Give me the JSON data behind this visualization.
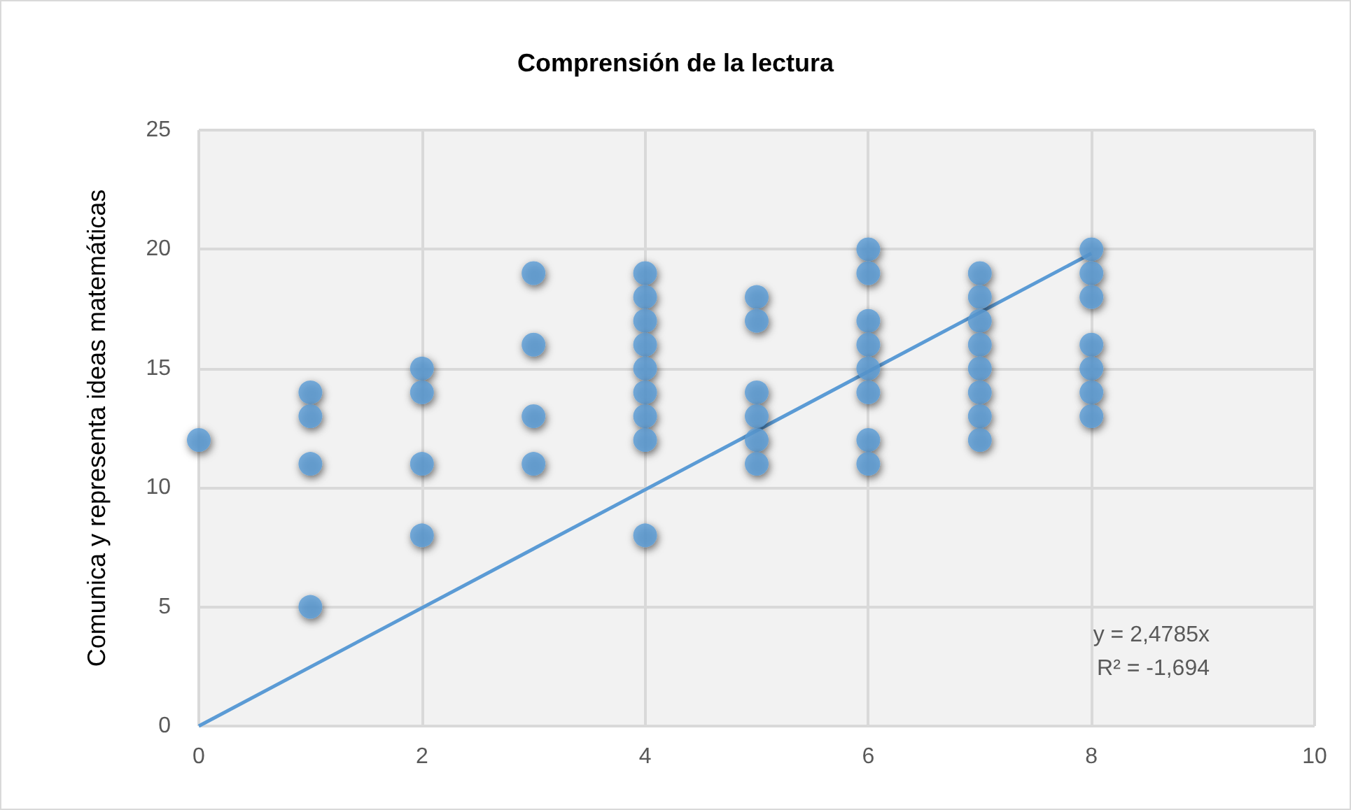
{
  "chart_data": {
    "type": "scatter",
    "title": "Comprensión de la lectura",
    "ylabel": "Comunica y representa ideas matemáticas",
    "xlim": [
      0,
      10
    ],
    "xticks": [
      0,
      2,
      4,
      6,
      8,
      10
    ],
    "ylim": [
      0,
      25
    ],
    "yticks": [
      0,
      5,
      10,
      15,
      20,
      25
    ],
    "grid": true,
    "marker": "circle",
    "annotations": [
      "y = 2,4785x",
      "R² = -1,694"
    ],
    "series": [
      {
        "color": "#5b9bd5",
        "x": [
          0,
          1,
          1,
          1,
          1,
          2,
          2,
          2,
          2,
          3,
          3,
          3,
          3,
          4,
          4,
          4,
          4,
          4,
          4,
          4,
          4,
          4,
          5,
          5,
          5,
          5,
          5,
          5,
          6,
          6,
          6,
          6,
          6,
          6,
          6,
          6,
          7,
          7,
          7,
          7,
          7,
          7,
          7,
          7,
          8,
          8,
          8,
          8,
          8,
          8,
          8
        ],
        "values": [
          12,
          14,
          13,
          11,
          5,
          15,
          14,
          11,
          8,
          19,
          16,
          13,
          11,
          19,
          18,
          17,
          16,
          15,
          14,
          13,
          12,
          8,
          18,
          17,
          14,
          13,
          12,
          11,
          20,
          19,
          17,
          16,
          15,
          14,
          12,
          11,
          19,
          18,
          17,
          16,
          15,
          14,
          13,
          12,
          20,
          19,
          18,
          16,
          15,
          14,
          13
        ]
      },
      {
        "type": "line",
        "color": "#5b9bd5",
        "marker": "none",
        "x": [
          0,
          8
        ],
        "values": [
          0,
          19.83
        ]
      }
    ]
  }
}
